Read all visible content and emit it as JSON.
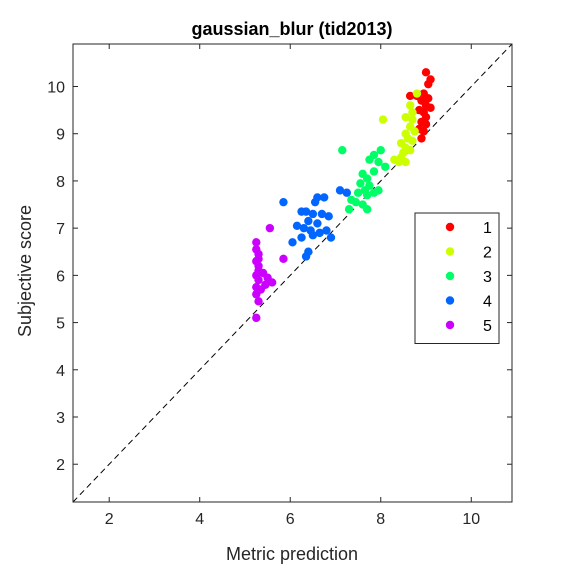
{
  "chart_data": {
    "type": "scatter",
    "title": "gaussian_blur (tid2013)",
    "xlabel": "Metric prediction",
    "ylabel": "Subjective score",
    "xlim": [
      1.2,
      10.9
    ],
    "ylim": [
      1.2,
      10.9
    ],
    "xticks": [
      "2",
      "4",
      "6",
      "8",
      "10"
    ],
    "yticks": [
      "2",
      "3",
      "4",
      "5",
      "6",
      "7",
      "8",
      "9",
      "10"
    ],
    "xtick_values": [
      2,
      4,
      6,
      8,
      10
    ],
    "ytick_values": [
      2,
      3,
      4,
      5,
      6,
      7,
      8,
      9,
      10
    ],
    "reference_line": "y = x (dashed)",
    "grid": false,
    "legend_position": "right",
    "series": [
      {
        "name": "1",
        "color": "#ff0000",
        "points": [
          [
            9.0,
            10.3
          ],
          [
            9.1,
            10.15
          ],
          [
            9.05,
            10.05
          ],
          [
            8.65,
            9.8
          ],
          [
            8.8,
            9.8
          ],
          [
            8.95,
            9.85
          ],
          [
            9.05,
            9.75
          ],
          [
            8.9,
            9.7
          ],
          [
            9.0,
            9.6
          ],
          [
            9.1,
            9.55
          ],
          [
            8.85,
            9.5
          ],
          [
            8.95,
            9.45
          ],
          [
            9.0,
            9.35
          ],
          [
            8.9,
            9.25
          ],
          [
            9.0,
            9.2
          ],
          [
            8.85,
            9.1
          ],
          [
            8.95,
            9.05
          ],
          [
            8.9,
            8.9
          ]
        ]
      },
      {
        "name": "2",
        "color": "#ccff00",
        "points": [
          [
            8.8,
            9.85
          ],
          [
            8.65,
            9.6
          ],
          [
            8.7,
            9.45
          ],
          [
            8.55,
            9.35
          ],
          [
            8.7,
            9.3
          ],
          [
            8.05,
            9.3
          ],
          [
            8.65,
            9.15
          ],
          [
            8.75,
            9.05
          ],
          [
            8.55,
            9.0
          ],
          [
            8.6,
            8.9
          ],
          [
            8.7,
            8.85
          ],
          [
            8.45,
            8.8
          ],
          [
            8.55,
            8.7
          ],
          [
            8.65,
            8.65
          ],
          [
            8.5,
            8.6
          ],
          [
            8.45,
            8.5
          ],
          [
            8.3,
            8.45
          ],
          [
            8.4,
            8.4
          ],
          [
            8.55,
            8.4
          ]
        ]
      },
      {
        "name": "3",
        "color": "#00ff66",
        "points": [
          [
            7.15,
            8.65
          ],
          [
            8.0,
            8.65
          ],
          [
            7.85,
            8.55
          ],
          [
            7.75,
            8.45
          ],
          [
            7.95,
            8.4
          ],
          [
            8.1,
            8.3
          ],
          [
            7.85,
            8.2
          ],
          [
            7.6,
            8.15
          ],
          [
            7.7,
            8.05
          ],
          [
            7.55,
            7.95
          ],
          [
            7.75,
            7.9
          ],
          [
            7.65,
            7.8
          ],
          [
            7.5,
            7.75
          ],
          [
            7.85,
            7.75
          ],
          [
            7.95,
            7.8
          ],
          [
            7.7,
            7.7
          ],
          [
            7.35,
            7.6
          ],
          [
            7.45,
            7.55
          ],
          [
            7.6,
            7.5
          ],
          [
            7.3,
            7.4
          ],
          [
            7.7,
            7.4
          ]
        ]
      },
      {
        "name": "4",
        "color": "#0066ff",
        "points": [
          [
            5.85,
            7.55
          ],
          [
            6.6,
            7.65
          ],
          [
            6.75,
            7.65
          ],
          [
            6.55,
            7.55
          ],
          [
            7.1,
            7.8
          ],
          [
            7.25,
            7.75
          ],
          [
            6.35,
            7.35
          ],
          [
            6.25,
            7.35
          ],
          [
            6.5,
            7.3
          ],
          [
            6.7,
            7.3
          ],
          [
            6.85,
            7.25
          ],
          [
            6.4,
            7.15
          ],
          [
            6.6,
            7.1
          ],
          [
            6.15,
            7.05
          ],
          [
            6.3,
            7.0
          ],
          [
            6.8,
            6.95
          ],
          [
            6.45,
            6.95
          ],
          [
            6.65,
            6.9
          ],
          [
            6.5,
            6.85
          ],
          [
            6.25,
            6.8
          ],
          [
            6.9,
            6.8
          ],
          [
            6.05,
            6.7
          ],
          [
            6.4,
            6.5
          ],
          [
            6.35,
            6.4
          ]
        ]
      },
      {
        "name": "5",
        "color": "#cc00ff",
        "points": [
          [
            5.25,
            6.7
          ],
          [
            5.25,
            6.55
          ],
          [
            5.55,
            7.0
          ],
          [
            5.3,
            6.45
          ],
          [
            5.3,
            6.35
          ],
          [
            5.25,
            6.3
          ],
          [
            5.3,
            6.2
          ],
          [
            5.3,
            6.1
          ],
          [
            5.4,
            6.05
          ],
          [
            5.25,
            6.0
          ],
          [
            5.5,
            5.95
          ],
          [
            5.3,
            5.9
          ],
          [
            5.6,
            5.85
          ],
          [
            5.45,
            5.8
          ],
          [
            5.25,
            5.75
          ],
          [
            5.35,
            5.7
          ],
          [
            5.25,
            5.6
          ],
          [
            5.3,
            5.45
          ],
          [
            5.85,
            6.35
          ],
          [
            5.25,
            5.1
          ]
        ]
      }
    ]
  }
}
